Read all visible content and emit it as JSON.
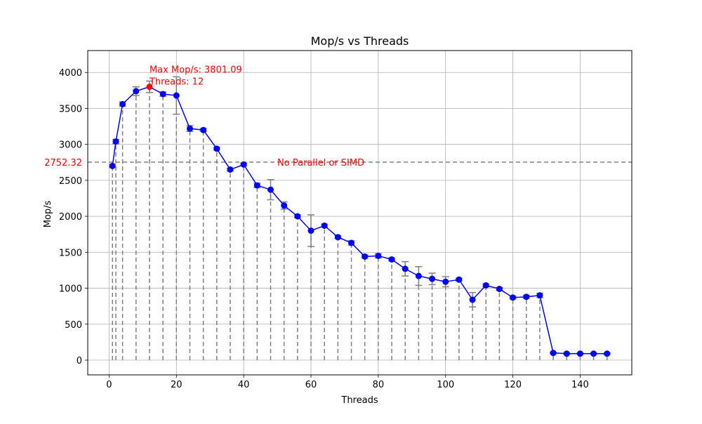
{
  "chart_data": {
    "type": "line",
    "title": "Mop/s vs Threads",
    "xlabel": "Threads",
    "ylabel": "Mop/s",
    "xlim": [
      -6.35,
      155.35
    ],
    "ylim": [
      -205,
      4305
    ],
    "xticks": [
      0,
      20,
      40,
      60,
      80,
      100,
      120,
      140
    ],
    "yticks": [
      0,
      500,
      1000,
      1500,
      2000,
      2500,
      3000,
      3500,
      4000
    ],
    "grid": true,
    "series": [
      {
        "color": "#0000ff",
        "marker_color": "#0000ff",
        "x": [
          1,
          2,
          4,
          8,
          12,
          16,
          20,
          24,
          28,
          32,
          36,
          40,
          44,
          48,
          52,
          56,
          60,
          64,
          68,
          72,
          76,
          80,
          84,
          88,
          92,
          96,
          100,
          104,
          108,
          112,
          116,
          120,
          124,
          128,
          132,
          136,
          140,
          144,
          148
        ],
        "y": [
          2700,
          3040,
          3560,
          3740,
          3801.09,
          3700,
          3680,
          3220,
          3200,
          2940,
          2650,
          2720,
          2430,
          2370,
          2150,
          2000,
          1800,
          1870,
          1710,
          1630,
          1440,
          1450,
          1400,
          1270,
          1170,
          1130,
          1090,
          1120,
          840,
          1040,
          990,
          870,
          880,
          900,
          100,
          90,
          90,
          90,
          90
        ],
        "error": [
          20,
          30,
          30,
          60,
          80,
          30,
          260,
          40,
          20,
          20,
          20,
          20,
          30,
          140,
          50,
          20,
          220,
          20,
          20,
          30,
          20,
          30,
          20,
          100,
          130,
          80,
          70,
          20,
          100,
          20,
          20,
          20,
          20,
          30,
          10,
          10,
          10,
          10,
          10
        ]
      }
    ],
    "vlines_linestyle": "dashed",
    "vlines_color": "#808080",
    "baseline": {
      "value": 2752.32,
      "value_label": "2752.32",
      "label": "No Parallel or SIMD",
      "color": "#808080",
      "label_color": "#ff0000"
    },
    "max_point": {
      "x": 12,
      "y": 3801.09,
      "label_line1": "Max Mop/s: 3801.09",
      "label_line2": "Threads: 12",
      "color": "#ff0000"
    }
  }
}
